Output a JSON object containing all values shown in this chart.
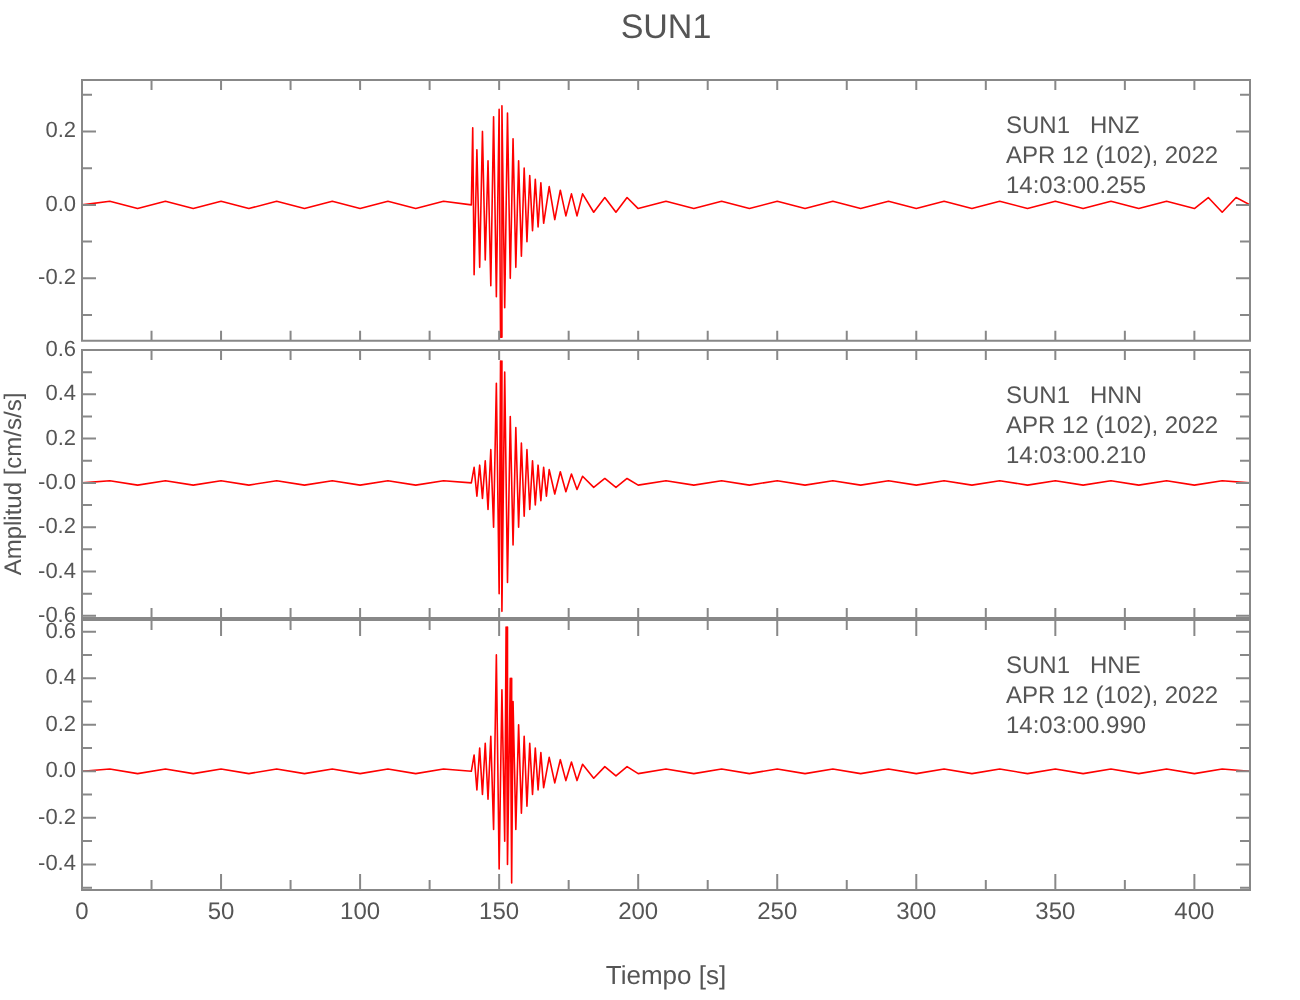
{
  "chart_data": [
    {
      "type": "line",
      "title": "SUN1",
      "annotations": [
        "SUN1   HNZ",
        "APR 12 (102), 2022",
        "14:03:00.255"
      ],
      "tick_labels": "y",
      "xlim": [
        0,
        420
      ],
      "ylim": [
        -0.37,
        0.34
      ],
      "xticks": [
        {
          "value": 0,
          "label": null
        },
        {
          "value": 25,
          "label": null
        },
        {
          "value": 50,
          "label": null
        },
        {
          "value": 75,
          "label": null
        },
        {
          "value": 100,
          "label": null
        },
        {
          "value": 125,
          "label": null
        },
        {
          "value": 150,
          "label": null
        },
        {
          "value": 175,
          "label": null
        },
        {
          "value": 200,
          "label": null
        },
        {
          "value": 225,
          "label": null
        },
        {
          "value": 250,
          "label": null
        },
        {
          "value": 275,
          "label": null
        },
        {
          "value": 300,
          "label": null
        },
        {
          "value": 325,
          "label": null
        },
        {
          "value": 350,
          "label": null
        },
        {
          "value": 375,
          "label": null
        },
        {
          "value": 400,
          "label": null
        }
      ],
      "yticks": [
        {
          "value": -0.3,
          "label": null
        },
        {
          "value": -0.2,
          "label": "-0.2"
        },
        {
          "value": -0.1,
          "label": null
        },
        {
          "value": 0,
          "label": "0.0"
        },
        {
          "value": 0.1,
          "label": null
        },
        {
          "value": 0.2,
          "label": "0.2"
        },
        {
          "value": 0.3,
          "label": null
        }
      ],
      "x": [
        0,
        10,
        20,
        30,
        40,
        50,
        60,
        70,
        80,
        90,
        100,
        110,
        120,
        130,
        140,
        140.5,
        141,
        142,
        143,
        144,
        145,
        146,
        147,
        148,
        149,
        150,
        150.5,
        151,
        152,
        153,
        154,
        155,
        156,
        157,
        158,
        159,
        160,
        161,
        162,
        163,
        164,
        165,
        166,
        168,
        170,
        172,
        174,
        176,
        178,
        180,
        184,
        188,
        192,
        196,
        200,
        210,
        220,
        230,
        240,
        250,
        260,
        270,
        280,
        290,
        300,
        310,
        320,
        330,
        340,
        350,
        360,
        370,
        380,
        390,
        400,
        405,
        410,
        415,
        420
      ],
      "series": [
        {
          "color": "#ff0000",
          "values": [
            0,
            0.01,
            -0.01,
            0.01,
            -0.01,
            0.01,
            -0.01,
            0.01,
            -0.01,
            0.01,
            -0.01,
            0.01,
            -0.01,
            0.01,
            0,
            0.21,
            -0.19,
            0.15,
            -0.17,
            0.2,
            -0.15,
            0.12,
            -0.22,
            0.24,
            -0.25,
            0.26,
            -0.36,
            0.27,
            -0.28,
            0.25,
            -0.2,
            0.18,
            -0.17,
            0.12,
            -0.14,
            0.1,
            -0.1,
            0.08,
            -0.07,
            0.07,
            -0.06,
            0.06,
            -0.05,
            0.05,
            -0.04,
            0.04,
            -0.03,
            0.03,
            -0.03,
            0.03,
            -0.02,
            0.02,
            -0.02,
            0.02,
            -0.01,
            0.01,
            -0.01,
            0.01,
            -0.01,
            0.01,
            -0.01,
            0.01,
            -0.01,
            0.01,
            -0.01,
            0.01,
            -0.01,
            0.01,
            -0.01,
            0.01,
            -0.01,
            0.01,
            -0.01,
            0.01,
            -0.01,
            0.02,
            -0.02,
            0.02,
            0
          ]
        }
      ]
    },
    {
      "type": "line",
      "ylabel": "Amplitud [cm/s/s]",
      "annotations": [
        "SUN1   HNN",
        "APR 12 (102), 2022",
        "14:03:00.210"
      ],
      "tick_labels": "y",
      "xlim": [
        0,
        420
      ],
      "ylim": [
        -0.61,
        0.6
      ],
      "xticks": [
        {
          "value": 0,
          "label": null
        },
        {
          "value": 25,
          "label": null
        },
        {
          "value": 50,
          "label": null
        },
        {
          "value": 75,
          "label": null
        },
        {
          "value": 100,
          "label": null
        },
        {
          "value": 125,
          "label": null
        },
        {
          "value": 150,
          "label": null
        },
        {
          "value": 175,
          "label": null
        },
        {
          "value": 200,
          "label": null
        },
        {
          "value": 225,
          "label": null
        },
        {
          "value": 250,
          "label": null
        },
        {
          "value": 275,
          "label": null
        },
        {
          "value": 300,
          "label": null
        },
        {
          "value": 325,
          "label": null
        },
        {
          "value": 350,
          "label": null
        },
        {
          "value": 375,
          "label": null
        },
        {
          "value": 400,
          "label": null
        }
      ],
      "yticks": [
        {
          "value": -0.6,
          "label": "-0.6"
        },
        {
          "value": -0.5,
          "label": null
        },
        {
          "value": -0.4,
          "label": "-0.4"
        },
        {
          "value": -0.3,
          "label": null
        },
        {
          "value": -0.2,
          "label": "-0.2"
        },
        {
          "value": -0.1,
          "label": null
        },
        {
          "value": 0,
          "label": "-0.0"
        },
        {
          "value": 0.1,
          "label": null
        },
        {
          "value": 0.2,
          "label": "0.2"
        },
        {
          "value": 0.3,
          "label": null
        },
        {
          "value": 0.4,
          "label": "0.4"
        },
        {
          "value": 0.5,
          "label": null
        },
        {
          "value": 0.6,
          "label": "0.6"
        }
      ],
      "x": [
        0,
        10,
        20,
        30,
        40,
        50,
        60,
        70,
        80,
        90,
        100,
        110,
        120,
        130,
        140,
        141,
        142,
        143,
        144,
        145,
        146,
        147,
        148,
        149,
        150,
        150.5,
        151,
        152,
        153,
        154,
        155,
        156,
        157,
        158,
        159,
        160,
        161,
        162,
        163,
        164,
        165,
        166,
        167,
        168,
        170,
        172,
        174,
        176,
        178,
        180,
        184,
        188,
        192,
        196,
        200,
        210,
        220,
        230,
        240,
        250,
        260,
        270,
        280,
        290,
        300,
        310,
        320,
        330,
        340,
        350,
        360,
        370,
        380,
        390,
        400,
        410,
        420
      ],
      "series": [
        {
          "color": "#ff0000",
          "values": [
            0,
            0.01,
            -0.01,
            0.01,
            -0.01,
            0.01,
            -0.01,
            0.01,
            -0.01,
            0.01,
            -0.01,
            0.01,
            -0.01,
            0.01,
            0,
            0.07,
            -0.06,
            0.08,
            -0.07,
            0.1,
            -0.12,
            0.15,
            -0.2,
            0.45,
            -0.5,
            0.55,
            -0.58,
            0.5,
            -0.45,
            0.3,
            -0.28,
            0.25,
            -0.2,
            0.18,
            -0.15,
            0.15,
            -0.12,
            0.1,
            -0.1,
            0.08,
            -0.08,
            0.07,
            -0.06,
            0.06,
            -0.05,
            0.05,
            -0.04,
            0.04,
            -0.03,
            0.03,
            -0.02,
            0.02,
            -0.02,
            0.02,
            -0.01,
            0.01,
            -0.01,
            0.01,
            -0.01,
            0.01,
            -0.01,
            0.01,
            -0.01,
            0.01,
            -0.01,
            0.01,
            -0.01,
            0.01,
            -0.01,
            0.01,
            -0.01,
            0.01,
            -0.01,
            0.01,
            -0.01,
            0.01,
            0
          ]
        }
      ]
    },
    {
      "type": "line",
      "xlabel": "Tiempo [s]",
      "annotations": [
        "SUN1   HNE",
        "APR 12 (102), 2022",
        "14:03:00.990"
      ],
      "xlim": [
        0,
        420
      ],
      "ylim": [
        -0.51,
        0.65
      ],
      "xticks": [
        {
          "value": 0,
          "label": "0"
        },
        {
          "value": 25,
          "label": null
        },
        {
          "value": 50,
          "label": "50"
        },
        {
          "value": 75,
          "label": null
        },
        {
          "value": 100,
          "label": "100"
        },
        {
          "value": 125,
          "label": null
        },
        {
          "value": 150,
          "label": "150"
        },
        {
          "value": 175,
          "label": null
        },
        {
          "value": 200,
          "label": "200"
        },
        {
          "value": 225,
          "label": null
        },
        {
          "value": 250,
          "label": "250"
        },
        {
          "value": 275,
          "label": null
        },
        {
          "value": 300,
          "label": "300"
        },
        {
          "value": 325,
          "label": null
        },
        {
          "value": 350,
          "label": "350"
        },
        {
          "value": 375,
          "label": null
        },
        {
          "value": 400,
          "label": "400"
        }
      ],
      "yticks": [
        {
          "value": -0.5,
          "label": null
        },
        {
          "value": -0.4,
          "label": "-0.4"
        },
        {
          "value": -0.3,
          "label": null
        },
        {
          "value": -0.2,
          "label": "-0.2"
        },
        {
          "value": -0.1,
          "label": null
        },
        {
          "value": 0,
          "label": "0.0"
        },
        {
          "value": 0.1,
          "label": null
        },
        {
          "value": 0.2,
          "label": "0.2"
        },
        {
          "value": 0.3,
          "label": null
        },
        {
          "value": 0.4,
          "label": "0.4"
        },
        {
          "value": 0.5,
          "label": null
        },
        {
          "value": 0.6,
          "label": "0.6"
        }
      ],
      "x": [
        0,
        10,
        20,
        30,
        40,
        50,
        60,
        70,
        80,
        90,
        100,
        110,
        120,
        130,
        140,
        141,
        142,
        143,
        144,
        145,
        146,
        147,
        148,
        149,
        150,
        151,
        152,
        152.5,
        153,
        154,
        154.5,
        155,
        156,
        157,
        158,
        159,
        160,
        161,
        162,
        163,
        164,
        165,
        166,
        168,
        170,
        172,
        174,
        176,
        178,
        180,
        184,
        188,
        192,
        196,
        200,
        210,
        220,
        230,
        240,
        250,
        260,
        270,
        280,
        290,
        300,
        310,
        320,
        330,
        340,
        350,
        360,
        370,
        380,
        390,
        400,
        410,
        420
      ],
      "series": [
        {
          "color": "#ff0000",
          "values": [
            0,
            0.01,
            -0.01,
            0.01,
            -0.01,
            0.01,
            -0.01,
            0.01,
            -0.01,
            0.01,
            -0.01,
            0.01,
            -0.01,
            0.01,
            0,
            0.07,
            -0.08,
            0.1,
            -0.1,
            0.12,
            -0.12,
            0.15,
            -0.25,
            0.5,
            -0.42,
            0.35,
            -0.3,
            0.62,
            -0.4,
            0.4,
            -0.48,
            0.3,
            -0.25,
            0.2,
            -0.18,
            0.15,
            -0.15,
            0.12,
            -0.1,
            0.1,
            -0.08,
            0.08,
            -0.07,
            0.06,
            -0.05,
            0.05,
            -0.04,
            0.04,
            -0.04,
            0.03,
            -0.03,
            0.02,
            -0.02,
            0.02,
            -0.01,
            0.01,
            -0.01,
            0.01,
            -0.01,
            0.01,
            -0.01,
            0.01,
            -0.01,
            0.01,
            -0.01,
            0.01,
            -0.01,
            0.01,
            -0.01,
            0.01,
            -0.01,
            0.01,
            -0.01,
            0.01,
            -0.01,
            0.01,
            0
          ]
        }
      ]
    }
  ]
}
